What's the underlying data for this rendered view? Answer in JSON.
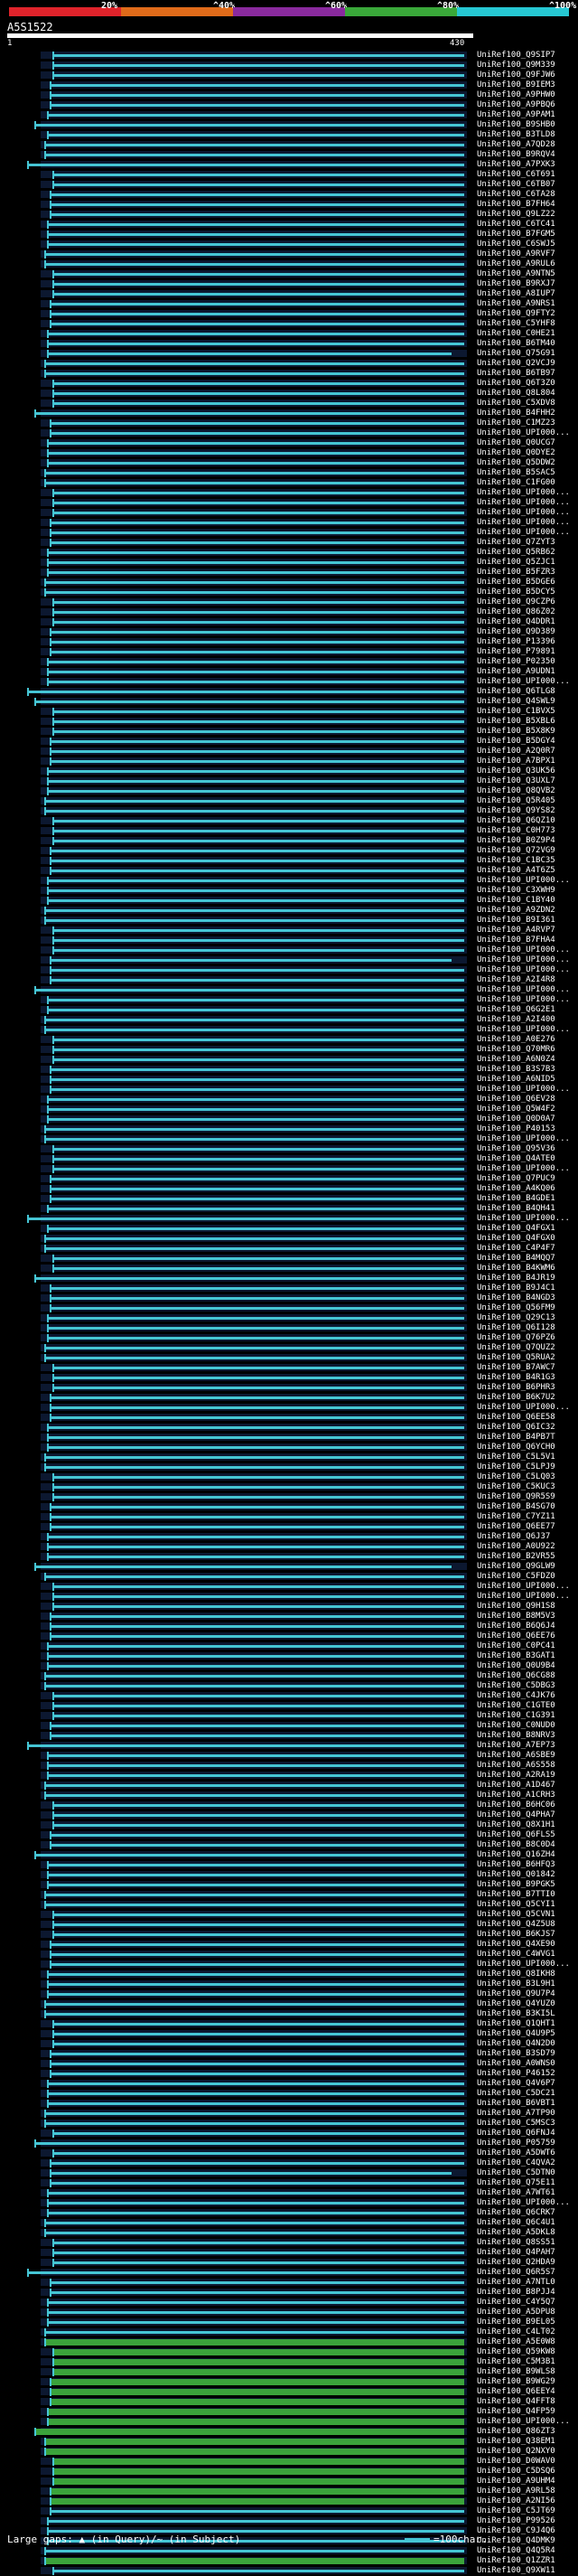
{
  "header": {
    "legend": [
      {
        "label": "20%",
        "color": "#e0232b"
      },
      {
        "label": "^40%",
        "color": "#e06b1a"
      },
      {
        "label": "^60%",
        "color": "#8a2a9e"
      },
      {
        "label": "^80%",
        "color": "#3aa83a"
      },
      {
        "label": "^100%",
        "color": "#26c7d2"
      }
    ],
    "query_id": "A5S1522",
    "scale_start": "1",
    "scale_end": "430"
  },
  "rows": [
    "UniRef100_Q9SIP7",
    "UniRef100_Q9M339",
    "UniRef100_Q9FJW6",
    "UniRef100_B9IEM3",
    "UniRef100_A9PHW0",
    "UniRef100_A9PBQ6",
    "UniRef100_A9PAM1",
    "UniRef100_B9SHB0",
    "UniRef100_B3TLD8",
    "UniRef100_A7QD28",
    "UniRef100_B9RQV4",
    "UniRef100_A7PXK3",
    "UniRef100_C6T691",
    "UniRef100_C6TB07",
    "UniRef100_C6TA28",
    "UniRef100_B7FH64",
    "UniRef100_Q9LZ22",
    "UniRef100_C6TC41",
    "UniRef100_B7FGM5",
    "UniRef100_C6SWJ5",
    "UniRef100_A9RVF7",
    "UniRef100_A9RUL6",
    "UniRef100_A9NTN5",
    "UniRef100_B9RXJ7",
    "UniRef100_A8IUP7",
    "UniRef100_A9NRS1",
    "UniRef100_Q9FTY2",
    "UniRef100_C5YHF8",
    "UniRef100_C0HE21",
    "UniRef100_B6TM40",
    "UniRef100_Q75G91",
    "UniRef100_Q2VCJ9",
    "UniRef100_B6TB97",
    "UniRef100_Q6T3Z0",
    "UniRef100_Q8L804",
    "UniRef100_C5XDV8",
    "UniRef100_B4FHH2",
    "UniRef100_C1MZ23",
    "UniRef100_UPI000...",
    "UniRef100_Q0UCG7",
    "UniRef100_Q0DYE2",
    "UniRef100_Q5DDW2",
    "UniRef100_B5SAC5",
    "UniRef100_C1FG00",
    "UniRef100_UPI000...",
    "UniRef100_UPI000...",
    "UniRef100_UPI000...",
    "UniRef100_UPI000...",
    "UniRef100_UPI000...",
    "UniRef100_Q7ZYT3",
    "UniRef100_Q5RB62",
    "UniRef100_Q5ZJC1",
    "UniRef100_B5FZR3",
    "UniRef100_B5DGE6",
    "UniRef100_B5DCY5",
    "UniRef100_Q9CZP6",
    "UniRef100_Q86Z02",
    "UniRef100_Q4DDR1",
    "UniRef100_Q9D389",
    "UniRef100_P13396",
    "UniRef100_P79891",
    "UniRef100_P02350",
    "UniRef100_A9UDN1",
    "UniRef100_UPI000...",
    "UniRef100_Q6TLG8",
    "UniRef100_Q4SWL9",
    "UniRef100_C1BVX5",
    "UniRef100_B5XBL6",
    "UniRef100_B5X8K9",
    "UniRef100_B5DGY4",
    "UniRef100_A2Q0R7",
    "UniRef100_A7BPX1",
    "UniRef100_Q3UK56",
    "UniRef100_Q3UXL7",
    "UniRef100_Q8QVB2",
    "UniRef100_Q5R405",
    "UniRef100_Q9YS82",
    "UniRef100_Q6QZ10",
    "UniRef100_C0H773",
    "UniRef100_B0Z9P4",
    "UniRef100_Q72VG9",
    "UniRef100_C1BC35",
    "UniRef100_A4T6Z5",
    "UniRef100_UPI000...",
    "UniRef100_C3XWH9",
    "UniRef100_C1BY40",
    "UniRef100_A9ZDN2",
    "UniRef100_B9I361",
    "UniRef100_A4RVP7",
    "UniRef100_B7FHA4",
    "UniRef100_UPI000...",
    "UniRef100_UPI000...",
    "UniRef100_UPI000...",
    "UniRef100_A2I4R8",
    "UniRef100_UPI000...",
    "UniRef100_UPI000...",
    "UniRef100_Q6G2E1",
    "UniRef100_A2I400",
    "UniRef100_UPI000...",
    "UniRef100_A0E276",
    "UniRef100_Q70MR6",
    "UniRef100_A6N0Z4",
    "UniRef100_B3S7B3",
    "UniRef100_A6NID5",
    "UniRef100_UPI000...",
    "UniRef100_Q6EV28",
    "UniRef100_Q5W4F2",
    "UniRef100_Q0D0A7",
    "UniRef100_P40153",
    "UniRef100_UPI000...",
    "UniRef100_Q95V36",
    "UniRef100_Q4ATE0",
    "UniRef100_UPI000...",
    "UniRef100_Q7PUC9",
    "UniRef100_A4KQ06",
    "UniRef100_B4GDE1",
    "UniRef100_B4QH41",
    "UniRef100_UPI000...",
    "UniRef100_Q4FGX1",
    "UniRef100_Q4FGX0",
    "UniRef100_C4P4F7",
    "UniRef100_B4MQQ7",
    "UniRef100_B4KWM6",
    "UniRef100_B4JR19",
    "UniRef100_B9J4C1",
    "UniRef100_B4NGD3",
    "UniRef100_Q56FM9",
    "UniRef100_Q29C13",
    "UniRef100_Q6I128",
    "UniRef100_Q76PZ6",
    "UniRef100_Q7QUZ2",
    "UniRef100_Q5RUA2",
    "UniRef100_B7AWC7",
    "UniRef100_B4R1G3",
    "UniRef100_B6PHR3",
    "UniRef100_B6K7U2",
    "UniRef100_UPI000...",
    "UniRef100_Q6EE58",
    "UniRef100_Q6IC32",
    "UniRef100_B4PB7T",
    "UniRef100_Q6YCH0",
    "UniRef100_C5L5V1",
    "UniRef100_C5LPJ9",
    "UniRef100_C5LQ03",
    "UniRef100_C5KUC3",
    "UniRef100_Q9R5S9",
    "UniRef100_B4SG70",
    "UniRef100_C7YZ11",
    "UniRef100_Q6EE77",
    "UniRef100_Q6J37",
    "UniRef100_A0U922",
    "UniRef100_B2VR55",
    "UniRef100_Q9GLW9",
    "UniRef100_C5FDZ0",
    "UniRef100_UPI000...",
    "UniRef100_UPI000...",
    "UniRef100_Q9H1S8",
    "UniRef100_B8M5V3",
    "UniRef100_B6Q6J4",
    "UniRef100_Q6EE76",
    "UniRef100_C0PC41",
    "UniRef100_B3GAT1",
    "UniRef100_Q0U9B4",
    "UniRef100_Q6CG88",
    "UniRef100_C5DBG3",
    "UniRef100_C4JK76",
    "UniRef100_C1GTE0",
    "UniRef100_C1G391",
    "UniRef100_C0NUD0",
    "UniRef100_B8NRV3",
    "UniRef100_A7EP73",
    "UniRef100_A6SBE9",
    "UniRef100_A6S558",
    "UniRef100_A2RA19",
    "UniRef100_A1D467",
    "UniRef100_A1CRH3",
    "UniRef100_B6HC06",
    "UniRef100_Q4PHA7",
    "UniRef100_Q8X1H1",
    "UniRef100_Q6FLS5",
    "UniRef100_B8C0D4",
    "UniRef100_Q16ZH4",
    "UniRef100_B6HFQ3",
    "UniRef100_Q01842",
    "UniRef100_B9PGK5",
    "UniRef100_B7TTI0",
    "UniRef100_Q5CYI1",
    "UniRef100_Q5CVN1",
    "UniRef100_Q4Z5U8",
    "UniRef100_B6KJS7",
    "UniRef100_Q4XE90",
    "UniRef100_C4WVG1",
    "UniRef100_UPI000...",
    "UniRef100_Q8IKH8",
    "UniRef100_B3L9H1",
    "UniRef100_Q9U7P4",
    "UniRef100_Q4YUZ0",
    "UniRef100_B3KI5L",
    "UniRef100_Q1QHT1",
    "UniRef100_Q4U9P5",
    "UniRef100_Q4N2D0",
    "UniRef100_B3SD79",
    "UniRef100_A0WNS0",
    "UniRef100_P46152",
    "UniRef100_Q4V6P7",
    "UniRef100_C5DC21",
    "UniRef100_B6VBT1",
    "UniRef100_A7TP90",
    "UniRef100_C5MSC3",
    "UniRef100_Q6FNJ4",
    "UniRef100_P05759",
    "UniRef100_A5DWT6",
    "UniRef100_C4QVA2",
    "UniRef100_C5DTN0",
    "UniRef100_Q75E11",
    "UniRef100_A7WT61",
    "UniRef100_UPI000...",
    "UniRef100_Q6CRK7",
    "UniRef100_Q6C4U1",
    "UniRef100_A5DKL8",
    "UniRef100_Q8SS51",
    "UniRef100_Q4PAH7",
    "UniRef100_Q2HDA9",
    "UniRef100_Q6R5S7",
    "UniRef100_A7NTL0",
    "UniRef100_B8PJJ4",
    "UniRef100_C4Y5Q7",
    "UniRef100_A5DPU8",
    "UniRef100_B9EL05",
    "UniRef100_C4LT02",
    "UniRef100_A5E0W8",
    "UniRef100_Q59KW8",
    "UniRef100_C5M3B1",
    "UniRef100_B9WLS8",
    "UniRef100_B9WG29",
    "UniRef100_Q6EEY4",
    "UniRef100_Q4FFT8",
    "UniRef100_Q4FP59",
    "UniRef100_UPI000...",
    "UniRef100_Q86ZT3",
    "UniRef100_Q38EM1",
    "UniRef100_Q2NXY0",
    "UniRef100_D0WAV0",
    "UniRef100_C5DSQ6",
    "UniRef100_A9UHM4",
    "UniRef100_A9RL58",
    "UniRef100_A2NI56",
    "UniRef100_C5JT69",
    "UniRef100_P99526",
    "UniRef100_C9J4Q6",
    "UniRef100_Q4DMK9",
    "UniRef100_Q4Q5R4",
    "UniRef100_Q1ZZR1",
    "UniRef100_Q9XW11"
  ],
  "footer": {
    "large_gaps": "Large gaps: ▲ (in Query)/~ (in Subject)",
    "scale": "=100char."
  }
}
